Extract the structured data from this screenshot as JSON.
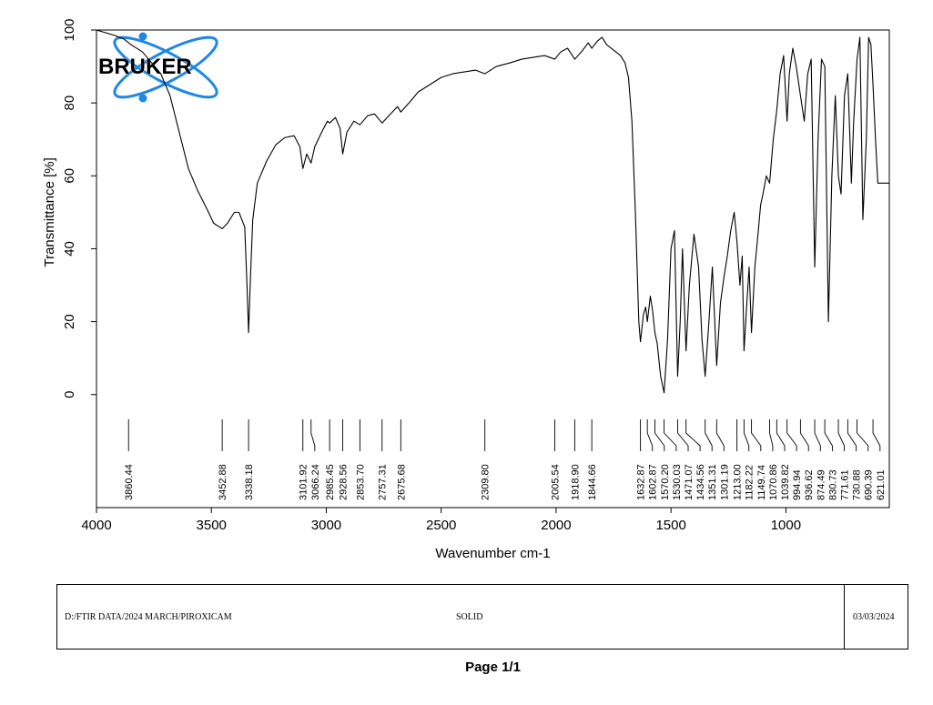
{
  "logo": {
    "text": "BRUKER",
    "accent_color": "#1e88e5"
  },
  "info_box": {
    "path": "D:/FTIR DATA/2024 MARCH/PIROXICAM",
    "state": "SOLID",
    "date": "03/03/2024"
  },
  "footer": {
    "page": "Page 1/1"
  },
  "chart_data": {
    "type": "line",
    "title": "",
    "xlabel": "Wavenumber cm-1",
    "ylabel": "Transmittance [%]",
    "xlim": [
      4000,
      550
    ],
    "ylim": [
      -31,
      100
    ],
    "x_ticks": [
      4000,
      3500,
      3000,
      2500,
      2000,
      1500,
      1000
    ],
    "y_ticks": [
      0,
      20,
      40,
      60,
      80,
      100
    ],
    "x_tick_labels": [
      "4000",
      "3500",
      "3000",
      "2500",
      "2000",
      "1500",
      "1000"
    ],
    "y_tick_labels": [
      "0",
      "20",
      "40",
      "60",
      "80",
      "100"
    ],
    "grid": false,
    "line_color": "#000000",
    "series": [
      {
        "x": [
          4000,
          3920,
          3880,
          3850,
          3800,
          3760,
          3720,
          3680,
          3640,
          3600,
          3560,
          3520,
          3490,
          3452.88,
          3430,
          3400,
          3380,
          3355,
          3345,
          3338.18,
          3330,
          3320,
          3300,
          3260,
          3220,
          3180,
          3140,
          3115,
          3101.92,
          3085,
          3066.24,
          3050,
          3020,
          2995,
          2985.45,
          2960,
          2940,
          2928.56,
          2910,
          2880,
          2853.7,
          2820,
          2790,
          2757.31,
          2720,
          2690,
          2675.68,
          2640,
          2600,
          2550,
          2500,
          2450,
          2400,
          2350,
          2309.8,
          2260,
          2200,
          2150,
          2100,
          2050,
          2005.54,
          1980,
          1950,
          1918.9,
          1890,
          1860,
          1844.66,
          1820,
          1800,
          1780,
          1760,
          1740,
          1720,
          1700,
          1685,
          1670,
          1655,
          1640,
          1632.87,
          1620,
          1610,
          1602.87,
          1590,
          1580,
          1570.2,
          1560,
          1545,
          1530.03,
          1515,
          1500,
          1485,
          1471.07,
          1460,
          1450,
          1434.56,
          1420,
          1400,
          1380,
          1365,
          1351.31,
          1335,
          1320,
          1301.19,
          1285,
          1270,
          1255,
          1240,
          1225,
          1213,
          1200,
          1190,
          1182.22,
          1170,
          1160,
          1149.74,
          1135,
          1120,
          1110,
          1100,
          1085,
          1070.86,
          1055,
          1039.82,
          1025,
          1010,
          994.94,
          985,
          970,
          955,
          936.62,
          920,
          905,
          890,
          874.49,
          860,
          845,
          830.73,
          815,
          800,
          785,
          771.61,
          760,
          745,
          730.88,
          715,
          705,
          690.39,
          678,
          665,
          650,
          640,
          630,
          621.01,
          610,
          600,
          590,
          580,
          570,
          560,
          550
        ],
        "y": [
          100,
          98.5,
          97.5,
          96,
          94,
          91,
          88,
          82,
          72,
          62,
          56,
          51,
          47,
          45.5,
          47,
          50,
          50,
          46,
          30,
          17,
          32,
          48,
          58,
          64,
          68.5,
          70.5,
          71,
          68,
          62,
          66,
          63.5,
          68,
          72,
          75,
          74.5,
          76,
          73,
          66,
          72,
          75,
          74,
          76.5,
          77,
          74.5,
          77,
          79,
          77.5,
          80,
          83,
          85,
          87,
          88,
          88.5,
          89,
          88,
          90,
          91,
          92,
          92.5,
          93,
          92,
          94,
          95,
          92,
          94,
          96.5,
          95,
          97,
          98,
          96,
          95,
          94,
          93,
          91,
          87,
          75,
          50,
          20,
          14.5,
          22,
          24,
          20,
          27,
          23,
          17,
          14,
          5,
          0.5,
          15,
          40,
          45,
          5,
          20,
          40,
          12,
          30,
          44,
          35,
          15,
          5,
          20,
          35,
          8,
          25,
          32,
          38,
          45,
          50,
          42,
          30,
          38,
          12,
          25,
          35,
          17,
          35,
          45,
          52,
          55,
          60,
          58,
          70,
          78,
          88,
          93,
          75,
          88,
          95,
          90,
          82,
          75,
          88,
          92,
          35,
          70,
          92,
          90,
          20,
          60,
          82,
          60,
          55,
          82,
          88,
          58,
          75,
          92,
          98,
          48,
          70,
          98,
          96,
          85,
          70,
          58,
          58,
          58,
          58,
          58,
          58
        ]
      }
    ],
    "peaks": [
      "3860.44",
      "3452.88",
      "3338.18",
      "3101.92",
      "3066.24",
      "2985.45",
      "2928.56",
      "2853.70",
      "2757.31",
      "2675.68",
      "2309.80",
      "2005.54",
      "1918.90",
      "1844.66",
      "1632.87",
      "1602.87",
      "1570.20",
      "1530.03",
      "1471.07",
      "1434.56",
      "1351.31",
      "1301.19",
      "1213.00",
      "1182.22",
      "1149.74",
      "1070.86",
      "1039.82",
      "994.94",
      "936.62",
      "874.49",
      "830.73",
      "771.61",
      "730.88",
      "690.39",
      "621.01"
    ]
  }
}
